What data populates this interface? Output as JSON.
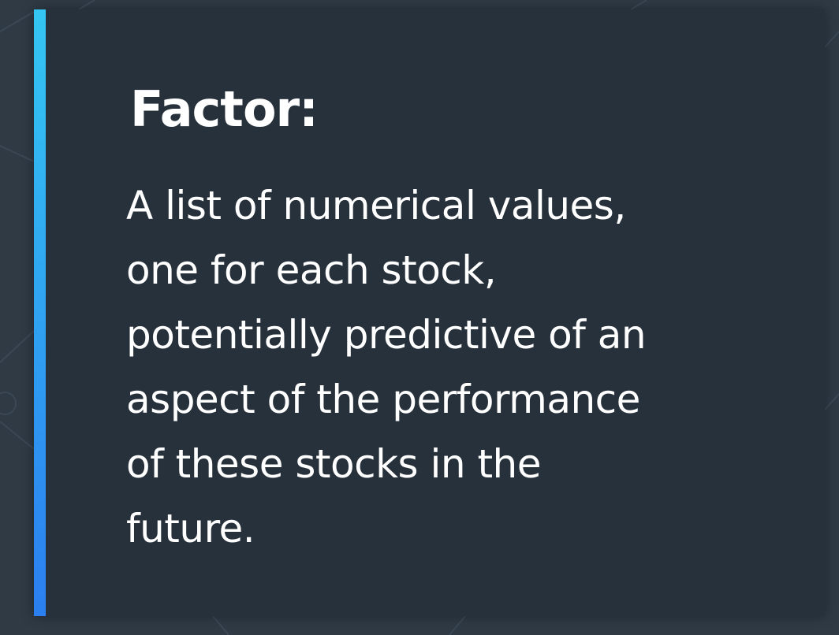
{
  "slide": {
    "title": "Factor:",
    "definition_lines": [
      "A list of numerical values,",
      "one for each stock,",
      "potentially predictive of an",
      "aspect of the performance",
      "of these stocks in the",
      "future."
    ]
  },
  "colors": {
    "background": "#2f3a45",
    "card": "#27313b",
    "accent_top": "#34c6f2",
    "accent_bottom": "#2b7ff0",
    "text": "#ffffff",
    "network_lines": "#3b4854"
  }
}
